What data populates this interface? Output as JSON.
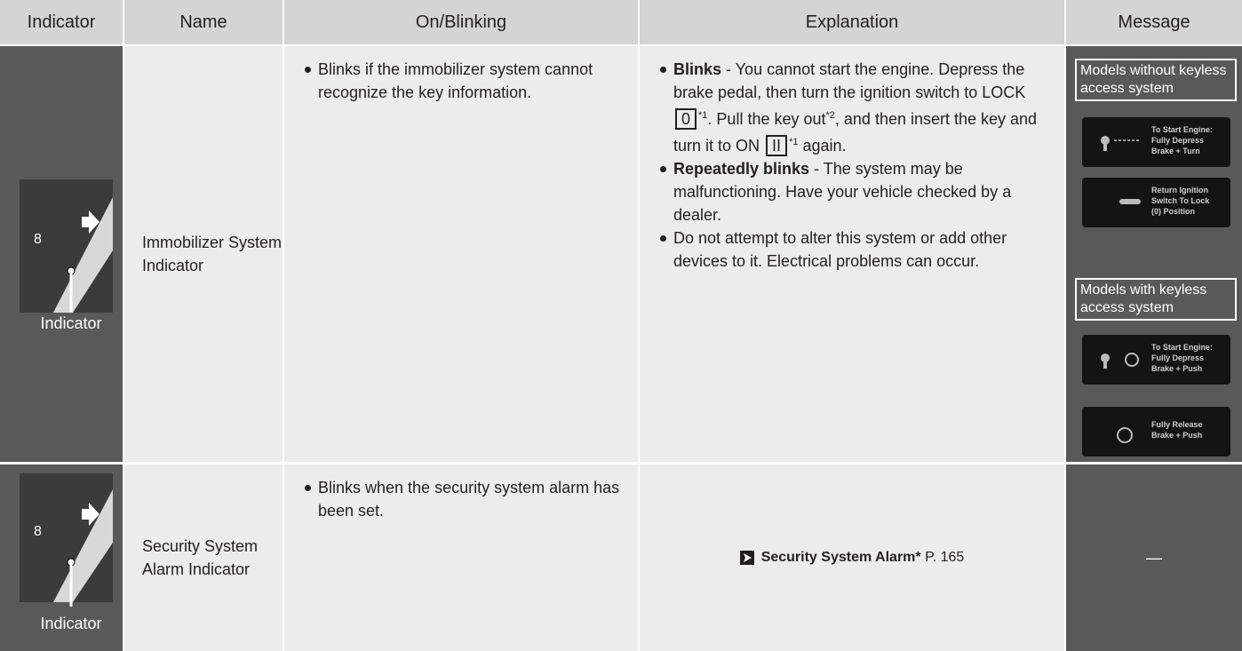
{
  "header": {
    "columns": [
      "Indicator",
      "Name",
      "On/Blinking",
      "Explanation",
      "Message"
    ]
  },
  "rows": [
    {
      "indicator_number": "8",
      "indicator_label": "Indicator",
      "name": "Immobilizer System Indicator",
      "on_blinking": [
        "Blinks if the immobilizer system cannot recognize the key information."
      ],
      "explanation": [
        [
          "Blinks",
          " - You cannot start the engine. Depress the brake pedal, then turn the ignition switch to LOCK ",
          "0",
          "*1",
          ". Pull the key out",
          "*2",
          ", and then insert the key and turn it to ON ",
          "II",
          "*1",
          " again."
        ],
        [
          "Repeatedly blinks",
          " - The system may be malfunctioning. Have your vehicle checked by a dealer."
        ],
        [
          "Do not attempt to alter this system or add other devices to it. Electrical problems can occur."
        ]
      ],
      "message": {
        "groups": [
          {
            "label": "Models without keyless access system",
            "screens": [
              [
                "To Start Engine:",
                "Fully Depress",
                "Brake + Turn"
              ],
              [
                "Return Ignition",
                "Switch To Lock",
                "(0) Position"
              ]
            ]
          },
          {
            "label": "Models with keyless access system",
            "screens": [
              [
                "To Start Engine:",
                "Fully Depress",
                "Brake + Push"
              ],
              [
                "Fully Release",
                "Brake + Push"
              ]
            ]
          }
        ]
      }
    },
    {
      "indicator_number": "8",
      "indicator_label": "Indicator",
      "name": "Security System Alarm Indicator",
      "on_blinking": [
        "Blinks when the security system alarm has been set."
      ],
      "explanation_link": {
        "text": "Security System Alarm",
        "mark": "*",
        "page": "P. 165"
      },
      "message": "—"
    }
  ]
}
